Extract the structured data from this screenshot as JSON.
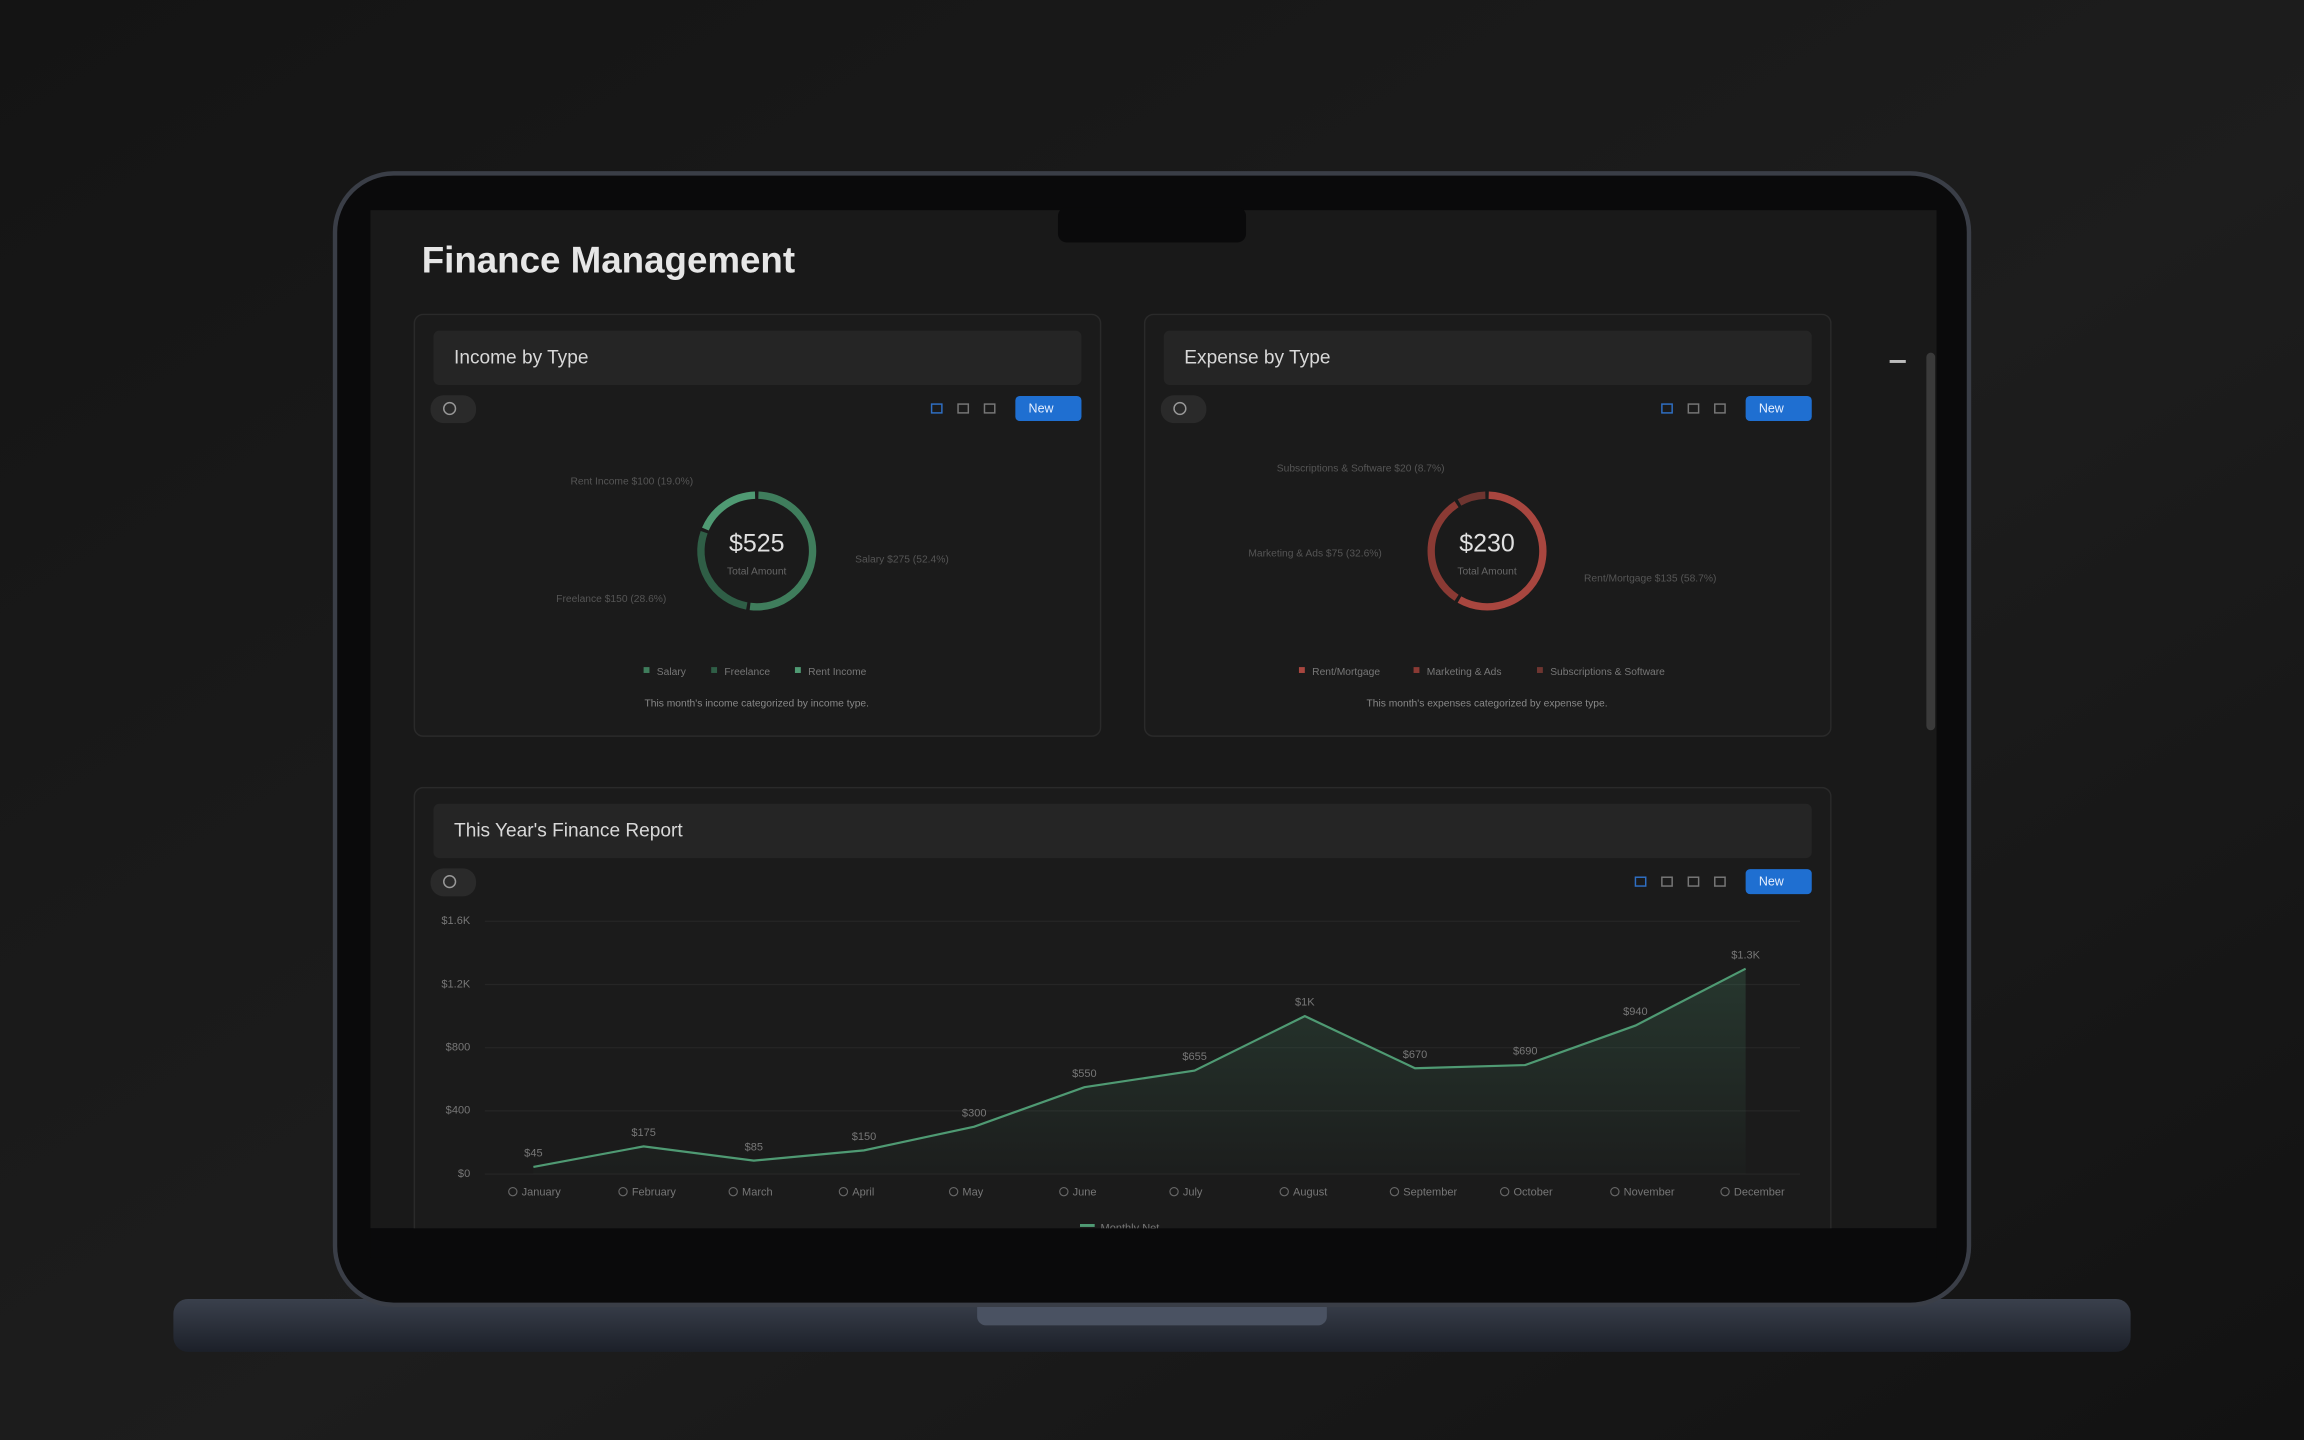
{
  "title": "Finance Management",
  "cards": [
    {
      "title": "Income by Type",
      "button": "New",
      "chart": {
        "type": "donut",
        "total": "$525",
        "total_label": "Total Amount",
        "slices": [
          {
            "name": "Salary",
            "value": 275,
            "label": "Salary $275 (52.4%)",
            "color": "#3f7d5c"
          },
          {
            "name": "Freelance",
            "value": 150,
            "label": "Freelance $150 (28.6%)",
            "color": "#2f5e46"
          },
          {
            "name": "Rent Income",
            "value": 100,
            "label": "Rent Income $100 (19.0%)",
            "color": "#4f9a73"
          }
        ],
        "caption": "This month's income categorized by income type."
      }
    },
    {
      "title": "Expense by Type",
      "button": "New",
      "chart": {
        "type": "donut",
        "total": "$230",
        "total_label": "Total Amount",
        "slices": [
          {
            "name": "Rent/Mortgage",
            "value": 135,
            "label": "Rent/Mortgage $135 (58.7%)",
            "color": "#a8463f"
          },
          {
            "name": "Marketing & Ads",
            "value": 75,
            "label": "Marketing & Ads $75 (32.6%)",
            "color": "#8a3a34"
          },
          {
            "name": "Subscriptions & Software",
            "value": 20,
            "label": "Subscriptions & Software $20 (8.7%)",
            "color": "#6e3530"
          }
        ],
        "caption": "This month's expenses categorized by expense type."
      }
    }
  ],
  "report": {
    "title": "This Year's Finance Report",
    "button": "New",
    "chart_data": {
      "type": "line",
      "categories": [
        "January",
        "February",
        "March",
        "April",
        "May",
        "June",
        "July",
        "August",
        "September",
        "October",
        "November",
        "December"
      ],
      "series": [
        {
          "name": "Monthly Net",
          "color": "#4f9a73",
          "values": [
            45,
            175,
            85,
            150,
            300,
            550,
            655,
            1000,
            670,
            690,
            940,
            1300
          ],
          "value_labels": [
            "$45",
            "$175",
            "$85",
            "$150",
            "$300",
            "$550",
            "$655",
            "$1K",
            "$670",
            "$690",
            "$940",
            "$1.3K"
          ]
        }
      ],
      "ylim": [
        0,
        1600
      ],
      "yticks": [
        {
          "value": 0,
          "label": "$0"
        },
        {
          "value": 400,
          "label": "$400"
        },
        {
          "value": 800,
          "label": "$800"
        },
        {
          "value": 1200,
          "label": "$1.2K"
        },
        {
          "value": 1600,
          "label": "$1.6K"
        }
      ],
      "grid": true
    }
  }
}
